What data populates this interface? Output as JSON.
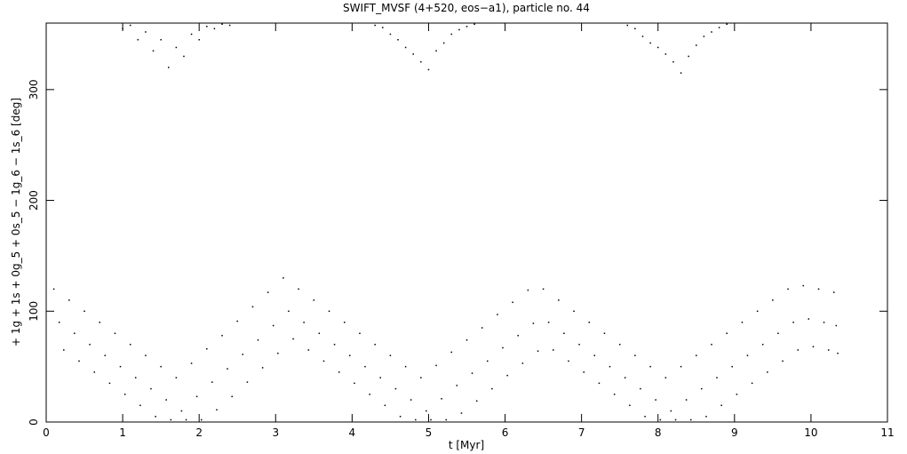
{
  "chart_data": {
    "type": "scatter",
    "title": "SWIFT_MVSF (4+520, eos−a1), particle no. 44",
    "x_label": "t [Myr]",
    "y_label": "+ 1g + 1s + 0g_5 + 0s_5 − 1g_6 − 1s_6 [deg]",
    "xlim": [
      0,
      11
    ],
    "ylim": [
      0,
      360
    ],
    "xticks": [
      0,
      1,
      2,
      3,
      4,
      5,
      6,
      7,
      8,
      9,
      10,
      11
    ],
    "yticks": [
      0,
      100,
      200,
      300
    ],
    "series": [
      {
        "color": "#000000",
        "x": [
          0.1,
          0.17,
          0.23,
          0.3,
          0.37,
          0.43,
          0.5,
          0.57,
          0.63,
          0.7,
          0.77,
          0.83,
          0.9,
          0.97,
          1.03,
          1.1,
          1.17,
          1.23,
          1.3,
          1.37,
          1.43,
          1.5,
          1.57,
          1.63,
          1.7,
          1.77,
          1.83,
          1.9,
          1.97,
          2.03,
          2.1,
          2.17,
          2.23,
          2.3,
          2.37,
          2.43,
          2.5,
          2.57,
          2.63,
          2.7,
          2.77,
          2.83,
          2.9,
          2.97,
          3.03,
          3.1,
          3.17,
          3.23,
          3.3,
          3.37,
          3.43,
          3.5,
          3.57,
          3.63,
          3.7,
          3.77,
          3.83,
          3.9,
          3.97,
          4.03,
          4.1,
          4.17,
          4.23,
          4.3,
          4.37,
          4.43,
          4.5,
          4.57,
          4.63,
          4.7,
          4.77,
          4.83,
          4.9,
          4.97,
          5.03,
          5.1,
          5.17,
          5.23,
          5.3,
          5.37,
          5.43,
          5.5,
          5.57,
          5.63,
          5.7,
          5.77,
          5.83,
          5.9,
          5.97,
          6.03,
          6.1,
          6.17,
          6.23,
          6.3,
          6.37,
          6.43,
          6.5,
          6.57,
          6.63,
          6.7,
          6.77,
          6.83,
          6.9,
          6.97,
          7.03,
          7.1,
          7.17,
          7.23,
          7.3,
          7.37,
          7.43,
          7.5,
          7.57,
          7.63,
          7.7,
          7.77,
          7.83,
          7.9,
          7.97,
          8.03,
          8.1,
          8.17,
          8.23,
          8.3,
          8.37,
          8.43,
          8.5,
          8.57,
          8.63,
          8.7,
          8.77,
          8.83,
          8.9,
          8.97,
          9.03,
          9.1,
          9.17,
          9.23,
          9.3,
          9.37,
          9.43,
          9.5,
          9.57,
          9.63,
          9.7,
          9.77,
          9.83,
          9.9,
          9.97,
          10.03,
          10.1,
          10.17,
          10.23,
          10.3,
          10.33,
          10.35
        ],
        "values": [
          120,
          90,
          65,
          110,
          80,
          55,
          100,
          70,
          45,
          90,
          60,
          35,
          80,
          50,
          25,
          70,
          40,
          15,
          60,
          30,
          5,
          50,
          20,
          2,
          40,
          10,
          2,
          53,
          23,
          2,
          66,
          36,
          11,
          78,
          48,
          23,
          91,
          61,
          36,
          104,
          74,
          49,
          117,
          87,
          62,
          130,
          100,
          75,
          120,
          90,
          65,
          110,
          80,
          55,
          100,
          70,
          45,
          90,
          60,
          35,
          80,
          50,
          25,
          70,
          40,
          15,
          60,
          30,
          5,
          50,
          20,
          2,
          40,
          10,
          2,
          51,
          21,
          2,
          63,
          33,
          8,
          74,
          44,
          19,
          85,
          55,
          30,
          97,
          67,
          42,
          108,
          78,
          53,
          119,
          89,
          64,
          120,
          90,
          65,
          110,
          80,
          55,
          100,
          70,
          45,
          90,
          60,
          35,
          80,
          50,
          25,
          70,
          40,
          15,
          60,
          30,
          5,
          50,
          20,
          2,
          40,
          10,
          2,
          50,
          20,
          2,
          60,
          30,
          5,
          70,
          40,
          15,
          80,
          50,
          25,
          90,
          60,
          35,
          100,
          70,
          45,
          110,
          80,
          55,
          120,
          90,
          65,
          123,
          93,
          68,
          120,
          90,
          65,
          117,
          87,
          62
        ]
      },
      {
        "color": "#000000",
        "x": [
          1.0,
          1.2,
          1.4,
          1.6,
          1.8,
          2.0,
          2.2,
          2.4,
          1.1,
          1.3,
          1.5,
          1.7,
          1.9,
          2.1,
          2.3,
          4.3,
          4.5,
          4.7,
          4.9,
          5.1,
          5.3,
          5.5,
          4.4,
          4.6,
          4.8,
          5.0,
          5.2,
          5.4,
          5.6,
          7.6,
          7.8,
          8.0,
          8.2,
          8.4,
          8.6,
          8.8,
          7.7,
          7.9,
          8.1,
          8.3,
          8.5,
          8.7,
          8.9
        ],
        "values": [
          355,
          345,
          335,
          320,
          330,
          345,
          355,
          358,
          358,
          352,
          345,
          338,
          350,
          357,
          359,
          358,
          350,
          338,
          325,
          335,
          350,
          357,
          356,
          345,
          332,
          318,
          342,
          354,
          359,
          358,
          348,
          338,
          325,
          330,
          348,
          356,
          355,
          342,
          332,
          315,
          340,
          352,
          359
        ]
      }
    ]
  }
}
